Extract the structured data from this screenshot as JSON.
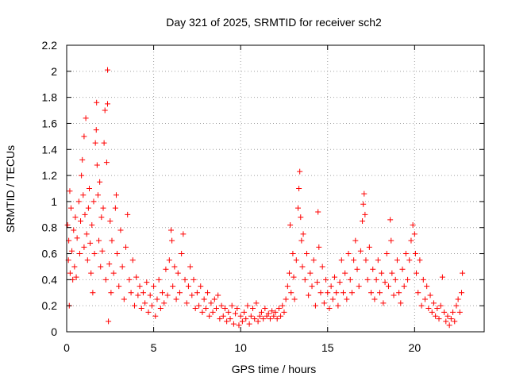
{
  "chart_data": {
    "type": "scatter",
    "title": "Day 321 of 2025, SRMTID for receiver sch2",
    "xlabel": "GPS time / hours",
    "ylabel": "SRMTID / TECUs",
    "xlim": [
      0,
      24
    ],
    "ylim": [
      0,
      2.2
    ],
    "grid": true,
    "marker": "+",
    "color": "#ff0000",
    "x_ticks": [
      0,
      5,
      10,
      15,
      20
    ],
    "x_tick_labels": [
      "0",
      "5",
      "10",
      "15",
      "20"
    ],
    "y_ticks": [
      0,
      0.2,
      0.4,
      0.6,
      0.8,
      1,
      1.2,
      1.4,
      1.6,
      1.8,
      2,
      2.2
    ],
    "y_tick_labels": [
      "0",
      "0.2",
      "0.4",
      "0.6",
      "0.8",
      "1",
      "1.2",
      "1.4",
      "1.6",
      "1.8",
      "2",
      "2.2"
    ],
    "series": [
      {
        "name": "SRMTID",
        "points": [
          [
            0.05,
            0.82
          ],
          [
            0.1,
            0.55
          ],
          [
            0.12,
            0.7
          ],
          [
            0.15,
            0.2
          ],
          [
            0.18,
            1.08
          ],
          [
            0.2,
            0.45
          ],
          [
            0.25,
            0.95
          ],
          [
            0.3,
            0.62
          ],
          [
            0.35,
            0.4
          ],
          [
            0.4,
            0.78
          ],
          [
            0.45,
            0.5
          ],
          [
            0.5,
            0.88
          ],
          [
            0.55,
            0.42
          ],
          [
            0.6,
            0.72
          ],
          [
            0.7,
            1.0
          ],
          [
            0.75,
            0.6
          ],
          [
            0.8,
            0.85
          ],
          [
            0.85,
            1.2
          ],
          [
            0.9,
            1.32
          ],
          [
            0.95,
            1.05
          ],
          [
            1.0,
            0.65
          ],
          [
            1.0,
            1.5
          ],
          [
            1.05,
            0.9
          ],
          [
            1.1,
            1.64
          ],
          [
            1.15,
            0.75
          ],
          [
            1.2,
            0.55
          ],
          [
            1.25,
            0.95
          ],
          [
            1.3,
            1.1
          ],
          [
            1.35,
            0.68
          ],
          [
            1.4,
            0.45
          ],
          [
            1.45,
            0.82
          ],
          [
            1.5,
            0.3
          ],
          [
            1.55,
            1.0
          ],
          [
            1.6,
            0.6
          ],
          [
            1.65,
            1.45
          ],
          [
            1.7,
            1.55
          ],
          [
            1.72,
            1.76
          ],
          [
            1.75,
            1.28
          ],
          [
            1.8,
            1.05
          ],
          [
            1.85,
            0.7
          ],
          [
            1.9,
            1.15
          ],
          [
            1.95,
            0.5
          ],
          [
            2.0,
            0.88
          ],
          [
            2.05,
            0.62
          ],
          [
            2.1,
            0.95
          ],
          [
            2.15,
            1.45
          ],
          [
            2.2,
            1.7
          ],
          [
            2.25,
            0.4
          ],
          [
            2.3,
            1.3
          ],
          [
            2.35,
            1.75
          ],
          [
            2.35,
            2.01
          ],
          [
            2.4,
            0.08
          ],
          [
            2.45,
            0.52
          ],
          [
            2.5,
            0.85
          ],
          [
            2.55,
            0.3
          ],
          [
            2.6,
            0.7
          ],
          [
            2.7,
            0.45
          ],
          [
            2.8,
            0.95
          ],
          [
            2.85,
            1.05
          ],
          [
            2.9,
            0.6
          ],
          [
            3.0,
            0.35
          ],
          [
            3.1,
            0.78
          ],
          [
            3.2,
            0.5
          ],
          [
            3.3,
            0.25
          ],
          [
            3.4,
            0.65
          ],
          [
            3.5,
            0.9
          ],
          [
            3.6,
            0.4
          ],
          [
            3.7,
            0.3
          ],
          [
            3.8,
            0.55
          ],
          [
            3.9,
            0.2
          ],
          [
            4.0,
            0.42
          ],
          [
            4.1,
            0.28
          ],
          [
            4.2,
            0.35
          ],
          [
            4.3,
            0.18
          ],
          [
            4.4,
            0.3
          ],
          [
            4.5,
            0.22
          ],
          [
            4.6,
            0.38
          ],
          [
            4.7,
            0.15
          ],
          [
            4.8,
            0.28
          ],
          [
            4.9,
            0.2
          ],
          [
            5.0,
            0.35
          ],
          [
            5.1,
            0.12
          ],
          [
            5.2,
            0.25
          ],
          [
            5.3,
            0.4
          ],
          [
            5.4,
            0.18
          ],
          [
            5.5,
            0.3
          ],
          [
            5.6,
            0.22
          ],
          [
            5.7,
            0.48
          ],
          [
            5.8,
            0.28
          ],
          [
            5.9,
            0.55
          ],
          [
            6.0,
            0.78
          ],
          [
            6.05,
            0.7
          ],
          [
            6.1,
            0.35
          ],
          [
            6.2,
            0.5
          ],
          [
            6.3,
            0.25
          ],
          [
            6.4,
            0.45
          ],
          [
            6.5,
            0.3
          ],
          [
            6.6,
            0.6
          ],
          [
            6.7,
            0.75
          ],
          [
            6.8,
            0.4
          ],
          [
            6.9,
            0.22
          ],
          [
            7.0,
            0.35
          ],
          [
            7.1,
            0.5
          ],
          [
            7.2,
            0.28
          ],
          [
            7.3,
            0.4
          ],
          [
            7.4,
            0.18
          ],
          [
            7.5,
            0.3
          ],
          [
            7.6,
            0.2
          ],
          [
            7.7,
            0.35
          ],
          [
            7.8,
            0.15
          ],
          [
            7.9,
            0.25
          ],
          [
            8.0,
            0.18
          ],
          [
            8.1,
            0.3
          ],
          [
            8.2,
            0.12
          ],
          [
            8.3,
            0.22
          ],
          [
            8.4,
            0.15
          ],
          [
            8.5,
            0.25
          ],
          [
            8.6,
            0.18
          ],
          [
            8.7,
            0.28
          ],
          [
            8.8,
            0.1
          ],
          [
            8.9,
            0.2
          ],
          [
            9.0,
            0.12
          ],
          [
            9.1,
            0.18
          ],
          [
            9.2,
            0.08
          ],
          [
            9.3,
            0.15
          ],
          [
            9.4,
            0.1
          ],
          [
            9.5,
            0.2
          ],
          [
            9.6,
            0.06
          ],
          [
            9.7,
            0.14
          ],
          [
            9.8,
            0.18
          ],
          [
            9.9,
            0.05
          ],
          [
            10.0,
            0.12
          ],
          [
            10.1,
            0.08
          ],
          [
            10.2,
            0.15
          ],
          [
            10.3,
            0.1
          ],
          [
            10.4,
            0.2
          ],
          [
            10.5,
            0.06
          ],
          [
            10.6,
            0.12
          ],
          [
            10.7,
            0.18
          ],
          [
            10.8,
            0.1
          ],
          [
            10.9,
            0.22
          ],
          [
            11.0,
            0.08
          ],
          [
            11.1,
            0.12
          ],
          [
            11.2,
            0.15
          ],
          [
            11.3,
            0.1
          ],
          [
            11.4,
            0.18
          ],
          [
            11.5,
            0.12
          ],
          [
            11.6,
            0.14
          ],
          [
            11.7,
            0.1
          ],
          [
            11.8,
            0.16
          ],
          [
            11.9,
            0.12
          ],
          [
            12.0,
            0.15
          ],
          [
            12.1,
            0.1
          ],
          [
            12.2,
            0.18
          ],
          [
            12.3,
            0.12
          ],
          [
            12.4,
            0.2
          ],
          [
            12.5,
            0.15
          ],
          [
            12.6,
            0.25
          ],
          [
            12.7,
            0.35
          ],
          [
            12.8,
            0.45
          ],
          [
            12.85,
            0.82
          ],
          [
            12.9,
            0.3
          ],
          [
            13.0,
            0.6
          ],
          [
            13.05,
            0.42
          ],
          [
            13.1,
            0.25
          ],
          [
            13.2,
            0.55
          ],
          [
            13.3,
            0.95
          ],
          [
            13.35,
            1.1
          ],
          [
            13.4,
            1.23
          ],
          [
            13.45,
            0.88
          ],
          [
            13.5,
            0.7
          ],
          [
            13.55,
            0.5
          ],
          [
            13.6,
            0.75
          ],
          [
            13.7,
            0.4
          ],
          [
            13.8,
            0.6
          ],
          [
            13.9,
            0.28
          ],
          [
            14.0,
            0.45
          ],
          [
            14.1,
            0.35
          ],
          [
            14.2,
            0.55
          ],
          [
            14.3,
            0.2
          ],
          [
            14.4,
            0.38
          ],
          [
            14.45,
            0.92
          ],
          [
            14.5,
            0.65
          ],
          [
            14.6,
            0.3
          ],
          [
            14.7,
            0.5
          ],
          [
            14.8,
            0.22
          ],
          [
            14.9,
            0.4
          ],
          [
            15.0,
            0.3
          ],
          [
            15.1,
            0.18
          ],
          [
            15.2,
            0.35
          ],
          [
            15.3,
            0.25
          ],
          [
            15.4,
            0.42
          ],
          [
            15.5,
            0.3
          ],
          [
            15.6,
            0.2
          ],
          [
            15.7,
            0.38
          ],
          [
            15.8,
            0.55
          ],
          [
            15.9,
            0.3
          ],
          [
            16.0,
            0.45
          ],
          [
            16.1,
            0.25
          ],
          [
            16.2,
            0.6
          ],
          [
            16.3,
            0.4
          ],
          [
            16.4,
            0.3
          ],
          [
            16.5,
            0.55
          ],
          [
            16.6,
            0.7
          ],
          [
            16.7,
            0.48
          ],
          [
            16.8,
            0.35
          ],
          [
            16.9,
            0.62
          ],
          [
            17.0,
            0.85
          ],
          [
            17.05,
            0.98
          ],
          [
            17.1,
            1.06
          ],
          [
            17.15,
            0.9
          ],
          [
            17.2,
            0.55
          ],
          [
            17.3,
            0.4
          ],
          [
            17.4,
            0.65
          ],
          [
            17.5,
            0.3
          ],
          [
            17.6,
            0.48
          ],
          [
            17.7,
            0.25
          ],
          [
            17.8,
            0.4
          ],
          [
            17.9,
            0.55
          ],
          [
            18.0,
            0.3
          ],
          [
            18.1,
            0.45
          ],
          [
            18.2,
            0.22
          ],
          [
            18.3,
            0.38
          ],
          [
            18.4,
            0.6
          ],
          [
            18.5,
            0.35
          ],
          [
            18.6,
            0.86
          ],
          [
            18.65,
            0.7
          ],
          [
            18.7,
            0.45
          ],
          [
            18.8,
            0.28
          ],
          [
            18.9,
            0.4
          ],
          [
            19.0,
            0.55
          ],
          [
            19.1,
            0.3
          ],
          [
            19.2,
            0.22
          ],
          [
            19.3,
            0.48
          ],
          [
            19.4,
            0.35
          ],
          [
            19.5,
            0.6
          ],
          [
            19.6,
            0.4
          ],
          [
            19.7,
            0.55
          ],
          [
            19.8,
            0.7
          ],
          [
            19.9,
            0.82
          ],
          [
            20.0,
            0.75
          ],
          [
            20.05,
            0.6
          ],
          [
            20.1,
            0.45
          ],
          [
            20.2,
            0.3
          ],
          [
            20.3,
            0.55
          ],
          [
            20.4,
            0.2
          ],
          [
            20.5,
            0.4
          ],
          [
            20.6,
            0.25
          ],
          [
            20.7,
            0.35
          ],
          [
            20.8,
            0.18
          ],
          [
            20.9,
            0.28
          ],
          [
            21.0,
            0.15
          ],
          [
            21.1,
            0.22
          ],
          [
            21.2,
            0.12
          ],
          [
            21.3,
            0.18
          ],
          [
            21.4,
            0.1
          ],
          [
            21.5,
            0.2
          ],
          [
            21.6,
            0.42
          ],
          [
            21.7,
            0.15
          ],
          [
            21.8,
            0.08
          ],
          [
            21.9,
            0.12
          ],
          [
            22.0,
            0.05
          ],
          [
            22.1,
            0.1
          ],
          [
            22.2,
            0.15
          ],
          [
            22.3,
            0.08
          ],
          [
            22.4,
            0.2
          ],
          [
            22.5,
            0.25
          ],
          [
            22.6,
            0.15
          ],
          [
            22.7,
            0.3
          ],
          [
            22.75,
            0.45
          ]
        ]
      }
    ]
  }
}
